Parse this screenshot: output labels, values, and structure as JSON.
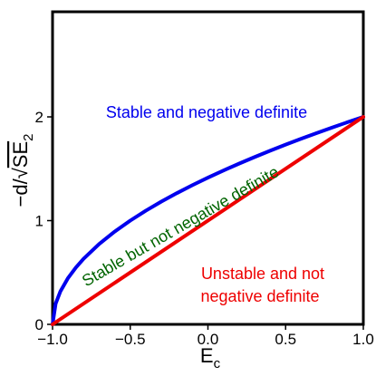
{
  "chart_data": {
    "type": "line",
    "title": "",
    "xlabel_main": "E",
    "xlabel_sub": "c",
    "ylabel_prefix": "−d/√",
    "ylabel_main": "SE",
    "ylabel_sub": "2",
    "xlim": [
      -1.0,
      1.0
    ],
    "ylim": [
      0,
      2.0
    ],
    "x_ticks": [
      -1.0,
      -0.5,
      0.0,
      0.5,
      1.0
    ],
    "x_tick_labels": [
      "−1.0",
      "−0.5",
      "0.0",
      "0.5",
      "1.0"
    ],
    "y_ticks": [
      0,
      1,
      2
    ],
    "y_tick_labels": [
      "0",
      "1",
      "2"
    ],
    "grid": false,
    "series": [
      {
        "color": "#0000ee",
        "x": [
          -1.0,
          -0.98,
          -0.95,
          -0.9,
          -0.85,
          -0.8,
          -0.7,
          -0.6,
          -0.5,
          -0.4,
          -0.3,
          -0.2,
          -0.1,
          0.0,
          0.1,
          0.2,
          0.3,
          0.4,
          0.5,
          0.6,
          0.7,
          0.8,
          0.9,
          1.0
        ],
        "y": [
          0.0,
          0.2,
          0.3162,
          0.4472,
          0.5477,
          0.6325,
          0.7746,
          0.8944,
          1.0,
          1.0954,
          1.1832,
          1.2649,
          1.3416,
          1.4142,
          1.4832,
          1.5492,
          1.6125,
          1.6733,
          1.7321,
          1.7889,
          1.8439,
          1.8974,
          1.9494,
          2.0
        ]
      },
      {
        "color": "#ee0000",
        "x": [
          -1.0,
          1.0
        ],
        "y": [
          0.0,
          2.0
        ]
      }
    ],
    "annotations": [
      {
        "text": "Stable and negative definite",
        "color": "#0000ee"
      },
      {
        "text": "Stable but not negative definite",
        "color": "#006400"
      },
      {
        "text": "Unstable and not",
        "color": "#ee0000"
      },
      {
        "text": "negative definite",
        "color": "#ee0000"
      }
    ]
  }
}
